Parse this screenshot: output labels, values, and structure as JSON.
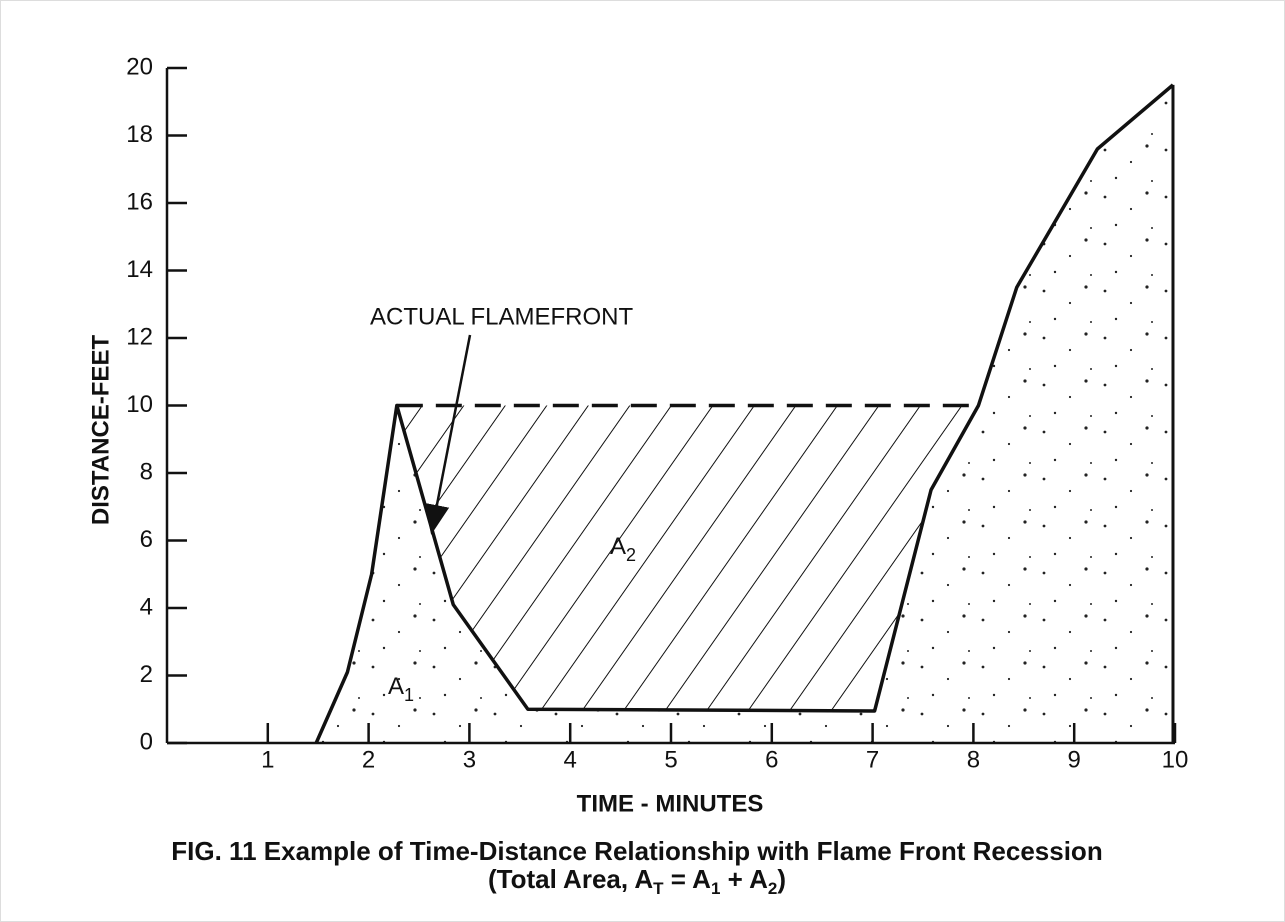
{
  "chart_data": {
    "type": "line",
    "x": [
      1.48,
      1.79,
      2.03,
      2.28,
      2.84,
      3.58,
      7.02,
      7.58,
      8.05,
      8.43,
      9.23,
      9.98
    ],
    "values": [
      0,
      2.1,
      5,
      10,
      4.1,
      1,
      0.95,
      7.5,
      10,
      13.5,
      17.6,
      19.5
    ],
    "color": "#111111",
    "xlim": [
      0,
      10
    ],
    "xticks": [
      1,
      2,
      3,
      4,
      5,
      6,
      7,
      8,
      9,
      10
    ],
    "ylim": [
      0,
      20
    ],
    "yticks": [
      0,
      2,
      4,
      6,
      8,
      10,
      12,
      14,
      16,
      18,
      20
    ],
    "xlabel": "TIME - MINUTES",
    "ylabel": "DISTANCE-FEET",
    "reference_line": {
      "y": 10,
      "x": [
        2.28,
        8.05
      ]
    },
    "annotation": "ACTUAL FLAMEFRONT",
    "area_labels": [
      {
        "name": "A",
        "sub": "1"
      },
      {
        "name": "A",
        "sub": "2"
      }
    ],
    "title": "FIG. 11  Example of Time-Distance Relationship with Flame Front Recession",
    "subtitle_parts": [
      "(Total Area, A",
      "T",
      " = A",
      "1",
      " + A",
      "2",
      ")"
    ]
  }
}
